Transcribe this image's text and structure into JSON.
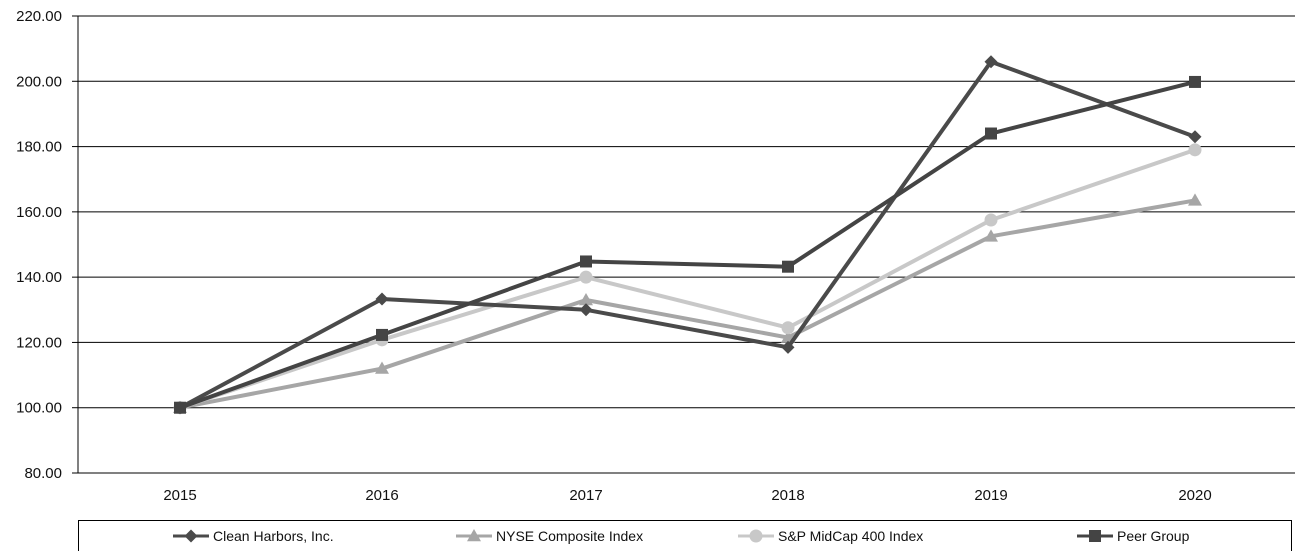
{
  "chart_data": {
    "type": "line",
    "title": "",
    "xlabel": "",
    "ylabel": "",
    "x": [
      "2015",
      "2016",
      "2017",
      "2018",
      "2019",
      "2020"
    ],
    "ylim": [
      80,
      220
    ],
    "yticks": [
      80,
      100,
      120,
      140,
      160,
      180,
      200,
      220
    ],
    "ytick_labels": [
      "80.00",
      "100.00",
      "120.00",
      "140.00",
      "160.00",
      "180.00",
      "200.00",
      "220.00"
    ],
    "grid": "horizontal",
    "legend_position": "bottom",
    "series": [
      {
        "name": "Clean Harbors, Inc.",
        "marker": "diamond",
        "color": "#4a4a4a",
        "values": [
          100.0,
          133.3,
          130.0,
          118.5,
          206.0,
          183.0
        ]
      },
      {
        "name": "NYSE Composite Index",
        "marker": "triangle",
        "color": "#a6a6a6",
        "values": [
          100.0,
          112.0,
          133.0,
          121.5,
          152.5,
          163.5
        ]
      },
      {
        "name": "S&P MidCap 400 Index",
        "marker": "circle",
        "color": "#c8c8c8",
        "values": [
          100.0,
          120.8,
          140.0,
          124.5,
          157.5,
          179.0
        ]
      },
      {
        "name": "Peer Group",
        "marker": "square",
        "color": "#444444",
        "values": [
          100.0,
          122.3,
          144.8,
          143.2,
          184.0,
          199.8
        ]
      }
    ]
  }
}
